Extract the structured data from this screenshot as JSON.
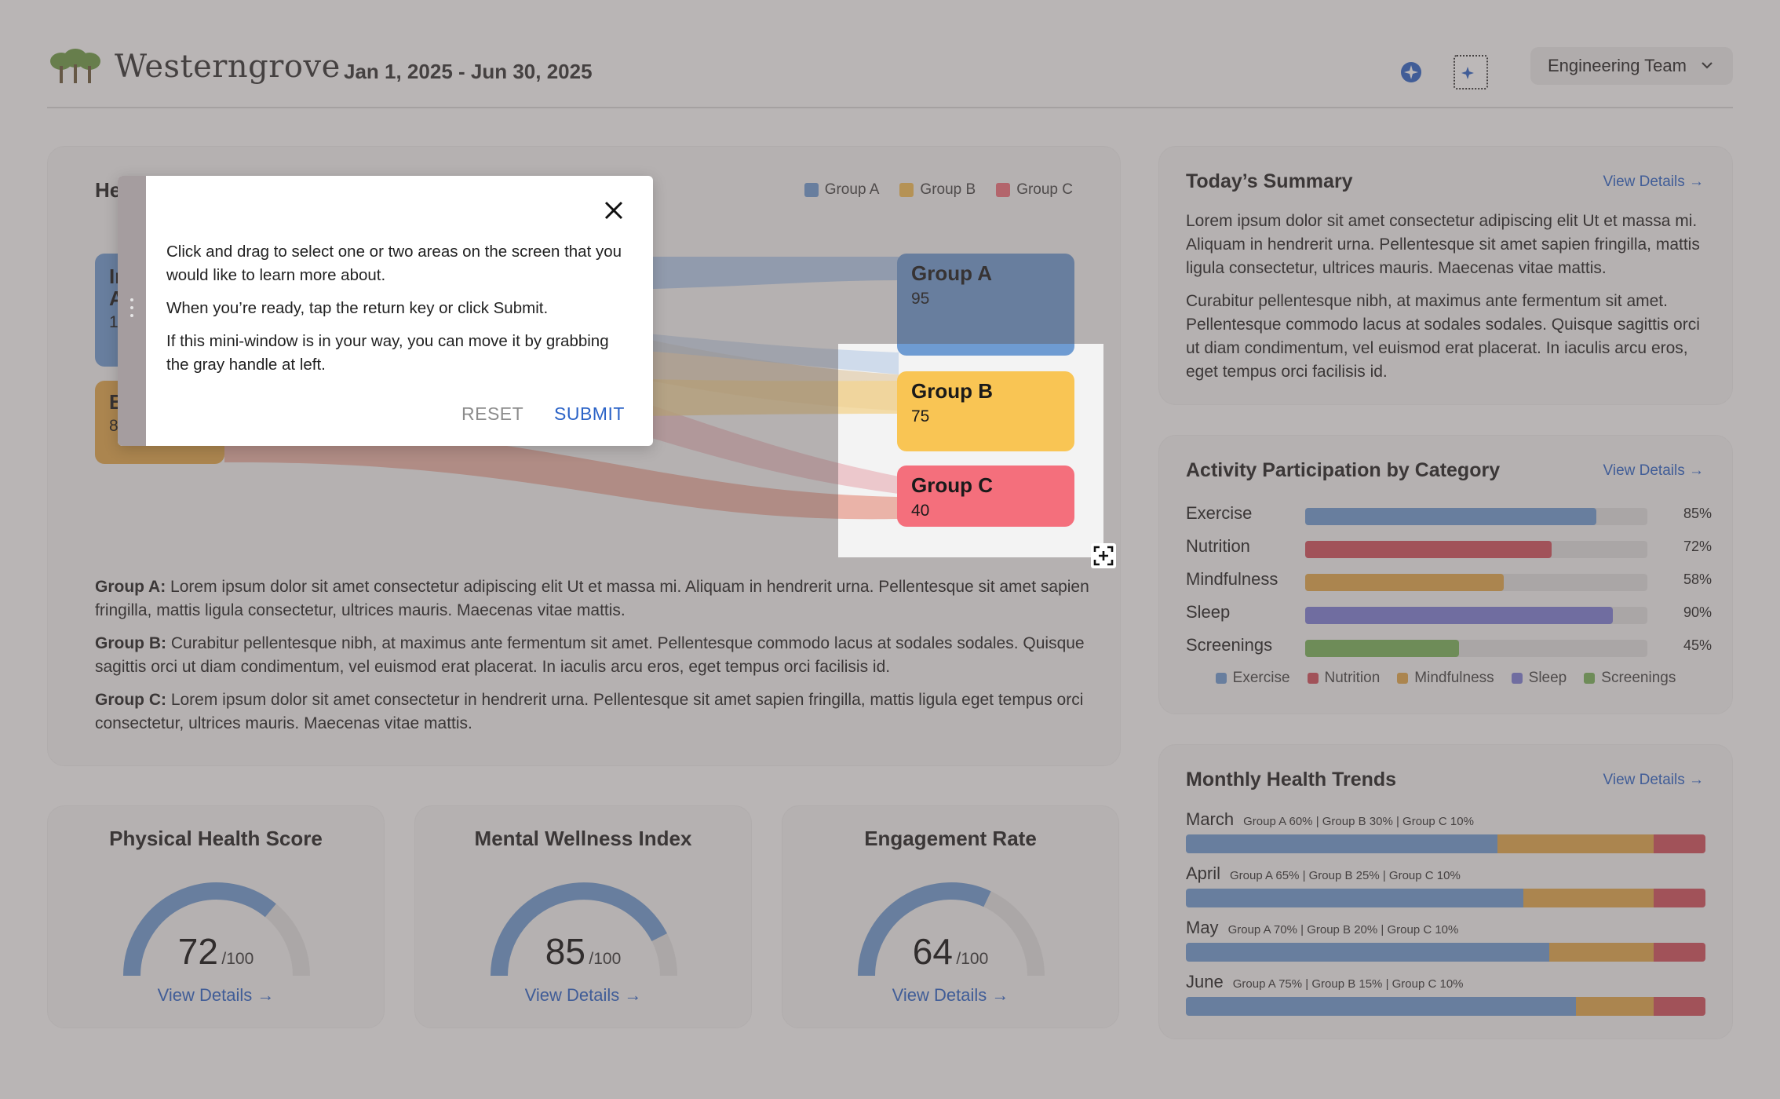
{
  "header": {
    "brand": "Westerngrove",
    "date_range": "Jan 1, 2025 - Jun 30, 2025",
    "team_selected": "Engineering Team",
    "icons": [
      "sparkle-icon",
      "region-select-icon",
      "chevron-down-icon"
    ]
  },
  "colors": {
    "group_a": "#6e9bd2",
    "group_b": "#f3be55",
    "group_c": "#f0707d",
    "link": "#2b63c7",
    "exercise": "#6e9bd2",
    "nutrition": "#d0505c",
    "mindfulness": "#e2a84a",
    "sleep": "#7c7fd6",
    "screenings": "#79b35b"
  },
  "main": {
    "title_visible": "He",
    "legend": [
      "Group A",
      "Group B",
      "Group C"
    ],
    "source_nodes": [
      {
        "label_visible": "In",
        "label2_visible": "A",
        "value_visible": "1"
      },
      {
        "label_visible": "B",
        "value_visible": "8"
      }
    ],
    "target_nodes": [
      {
        "label": "Group A",
        "value": "95"
      },
      {
        "label": "Group B",
        "value": "75"
      },
      {
        "label": "Group C",
        "value": "40"
      }
    ],
    "descriptions": [
      {
        "key": "Group A:",
        "text": " Lorem ipsum dolor sit amet consectetur adipiscing elit Ut et massa mi. Aliquam in hendrerit urna. Pellentesque sit amet sapien fringilla, mattis ligula consectetur, ultrices mauris. Maecenas vitae mattis."
      },
      {
        "key": "Group B:",
        "text": " Curabitur pellentesque nibh, at maximus ante fermentum sit amet. Pellentesque commodo lacus at sodales sodales. Quisque sagittis orci ut diam condimentum, vel euismod erat placerat. In iaculis arcu eros, eget tempus orci facilisis id."
      },
      {
        "key": "Group C:",
        "text": " Lorem ipsum dolor sit amet consectetur in hendrerit urna. Pellentesque sit amet sapien fringilla, mattis ligula eget tempus orci consectetur, ultrices mauris. Maecenas vitae mattis."
      }
    ]
  },
  "gauges": [
    {
      "title": "Physical Health Score",
      "value": "72",
      "max": "/100",
      "fraction": 0.72,
      "link": "View Details →"
    },
    {
      "title": "Mental Wellness Index",
      "value": "85",
      "max": "/100",
      "fraction": 0.85,
      "link": "View Details →"
    },
    {
      "title": "Engagement Rate",
      "value": "64",
      "max": "/100",
      "fraction": 0.64,
      "link": "View Details →"
    }
  ],
  "summary": {
    "title": "Today’s Summary",
    "link": "View Details →",
    "paragraphs": [
      "Lorem ipsum dolor sit amet consectetur adipiscing elit Ut et massa mi. Aliquam in hendrerit urna. Pellentesque sit amet sapien fringilla, mattis ligula consectetur, ultrices mauris. Maecenas vitae mattis.",
      "Curabitur pellentesque nibh, at maximus ante fermentum sit amet. Pellentesque commodo lacus at sodales sodales. Quisque sagittis orci ut diam condimentum, vel euismod erat placerat. In iaculis arcu eros, eget tempus orci facilisis id."
    ]
  },
  "activity": {
    "title": "Activity Participation by Category",
    "link": "View Details →",
    "rows": [
      {
        "label": "Exercise",
        "pct": "85%",
        "value": 0.85
      },
      {
        "label": "Nutrition",
        "pct": "72%",
        "value": 0.72
      },
      {
        "label": "Mindfulness",
        "pct": "58%",
        "value": 0.58
      },
      {
        "label": "Sleep",
        "pct": "90%",
        "value": 0.9
      },
      {
        "label": "Screenings",
        "pct": "45%",
        "value": 0.45
      }
    ],
    "legend": [
      "Exercise",
      "Nutrition",
      "Mindfulness",
      "Sleep",
      "Screenings"
    ]
  },
  "trends": {
    "title": "Monthly Health Trends",
    "link": "View Details →",
    "rows": [
      {
        "month": "March",
        "detail": "Group A 60% | Group B 30% | Group C 10%",
        "a": 60,
        "b": 30,
        "c": 10
      },
      {
        "month": "April",
        "detail": "Group A 65% | Group B 25% | Group C 10%",
        "a": 65,
        "b": 25,
        "c": 10
      },
      {
        "month": "May",
        "detail": "Group A 70% | Group B 20% | Group C 10%",
        "a": 70,
        "b": 20,
        "c": 10
      },
      {
        "month": "June",
        "detail": "Group A 75% | Group B 15% | Group C 10%",
        "a": 75,
        "b": 15,
        "c": 10
      }
    ]
  },
  "dialog": {
    "paragraphs": [
      "Click and drag to select one or two areas on the screen that you would like to learn more about.",
      "When you’re ready, tap the return key or click Submit.",
      "If this mini-window is in your way, you can move it by grabbing the gray handle at left."
    ],
    "reset_label": "RESET",
    "submit_label": "SUBMIT"
  }
}
